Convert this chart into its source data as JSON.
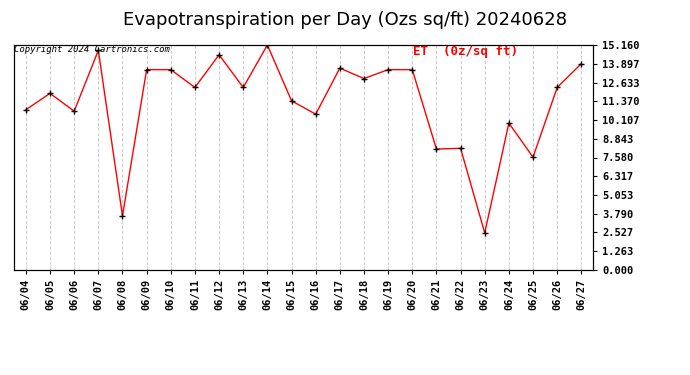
{
  "title": "Evapotranspiration per Day (Ozs sq/ft) 20240628",
  "copyright": "Copyright 2024 Cartronics.com",
  "legend_label": "ET  (0z/sq ft)",
  "dates": [
    "06/04",
    "06/05",
    "06/06",
    "06/07",
    "06/08",
    "06/09",
    "06/10",
    "06/11",
    "06/12",
    "06/13",
    "06/14",
    "06/15",
    "06/16",
    "06/17",
    "06/18",
    "06/19",
    "06/20",
    "06/21",
    "06/22",
    "06/23",
    "06/24",
    "06/25",
    "06/26",
    "06/27"
  ],
  "values": [
    10.8,
    11.9,
    10.7,
    14.8,
    3.65,
    13.5,
    13.5,
    12.3,
    14.5,
    12.3,
    15.16,
    11.4,
    10.5,
    13.6,
    12.9,
    13.5,
    13.5,
    8.15,
    8.2,
    2.5,
    9.9,
    7.6,
    12.3,
    13.9
  ],
  "line_color": "red",
  "marker_color": "black",
  "background_color": "white",
  "grid_color": "#cccccc",
  "yticks": [
    0.0,
    1.263,
    2.527,
    3.79,
    5.053,
    6.317,
    7.58,
    8.843,
    10.107,
    11.37,
    12.633,
    13.897,
    15.16
  ],
  "ymin": 0.0,
  "ymax": 15.16,
  "title_fontsize": 13,
  "tick_fontsize": 7.5
}
